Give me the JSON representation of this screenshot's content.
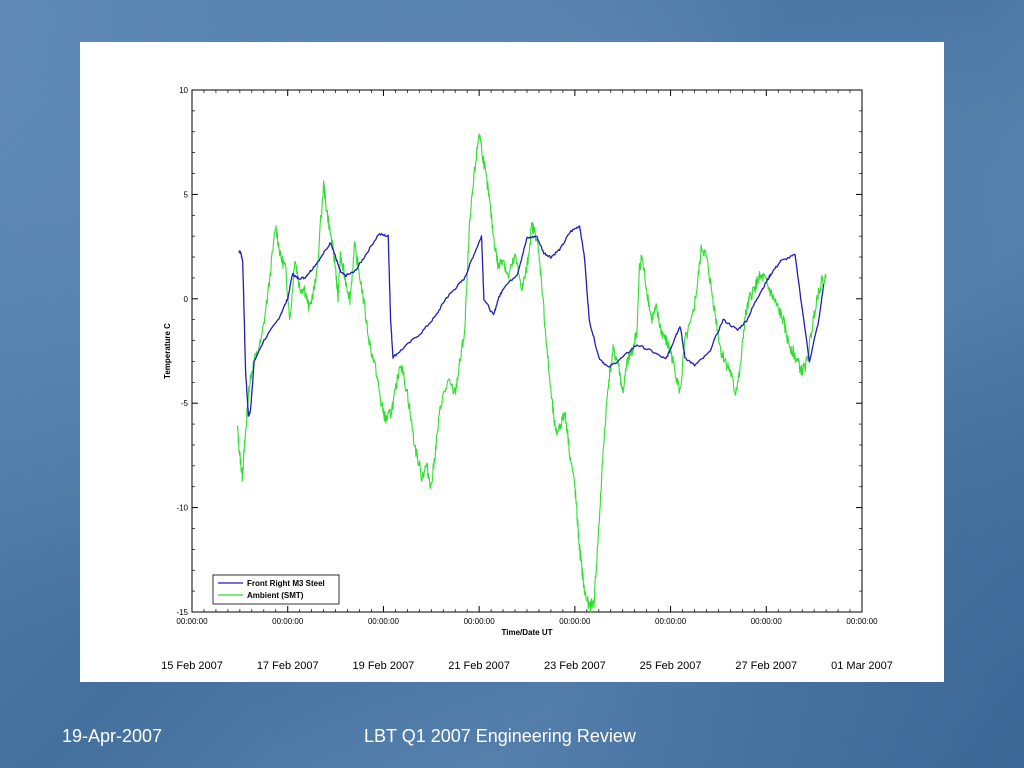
{
  "footer": {
    "date": "19-Apr-2007",
    "title": "LBT Q1 2007 Engineering Review"
  },
  "chart_data": {
    "type": "line",
    "title": "",
    "xlabel": "Time/Date UT",
    "ylabel": "Temperature C",
    "xlim": [
      "15 Feb 2007 00:00:00",
      "01 Mar 2007 00:00:00"
    ],
    "ylim": [
      -15,
      10
    ],
    "y_ticks": [
      10,
      5,
      0,
      -5,
      -10,
      -15
    ],
    "x_tick_labels": [
      "00:00:00",
      "00:00:00",
      "00:00:00",
      "00:00:00",
      "00:00:00",
      "00:00:00",
      "00:00:00",
      "00:00:00"
    ],
    "date_labels": [
      "15 Feb 2007",
      "17 Feb 2007",
      "19 Feb 2007",
      "21 Feb 2007",
      "23 Feb 2007",
      "25 Feb 2007",
      "27 Feb 2007",
      "01 Mar 2007"
    ],
    "grid": false,
    "legend_position": "bottom-left",
    "series": [
      {
        "name": "Front Right M3 Steel",
        "color": "#1f1fb4",
        "x_days": [
          0.98,
          1.02,
          1.06,
          1.12,
          1.18,
          1.22,
          1.3,
          1.5,
          1.8,
          2.0,
          2.1,
          2.2,
          2.35,
          2.5,
          2.7,
          2.9,
          3.0,
          3.1,
          3.2,
          3.4,
          3.6,
          3.9,
          4.1,
          4.15,
          4.2,
          4.4,
          4.8,
          5.1,
          5.3,
          5.5,
          5.7,
          5.85,
          6.05,
          6.1,
          6.3,
          6.4,
          6.5,
          6.8,
          7.0,
          7.2,
          7.35,
          7.5,
          7.7,
          7.9,
          8.1,
          8.2,
          8.3,
          8.5,
          8.7,
          9.0,
          9.3,
          9.6,
          9.9,
          10.0,
          10.1,
          10.2,
          10.3,
          10.5,
          10.8,
          11.1,
          11.4,
          11.6,
          11.8,
          12.0,
          12.1,
          12.3,
          12.6,
          12.9,
          13.1,
          13.2
        ],
        "values": [
          2.3,
          2.2,
          1.8,
          -3.5,
          -5.6,
          -5.4,
          -3.0,
          -2.0,
          -1.0,
          0.0,
          1.2,
          1.0,
          1.0,
          1.4,
          2.0,
          2.7,
          2.0,
          1.3,
          1.1,
          1.3,
          2.0,
          3.1,
          3.0,
          -1.0,
          -2.8,
          -2.4,
          -1.6,
          -0.8,
          0.0,
          0.5,
          1.0,
          1.9,
          3.0,
          0.0,
          -0.8,
          0.0,
          0.5,
          1.2,
          2.9,
          3.0,
          2.2,
          2.0,
          2.4,
          3.2,
          3.5,
          2.0,
          -1.0,
          -2.8,
          -3.3,
          -2.8,
          -2.2,
          -2.5,
          -2.9,
          -2.4,
          -1.8,
          -1.3,
          -2.8,
          -3.2,
          -2.6,
          -1.0,
          -1.5,
          -1.0,
          0.0,
          0.8,
          1.2,
          1.8,
          2.1,
          -3.0,
          -1.0,
          0.7
        ]
      },
      {
        "name": "Ambient (SMT)",
        "color": "#2ee02e",
        "x_days": [
          0.95,
          1.0,
          1.05,
          1.1,
          1.15,
          1.2,
          1.3,
          1.45,
          1.6,
          1.75,
          1.85,
          1.95,
          2.05,
          2.15,
          2.25,
          2.35,
          2.45,
          2.6,
          2.75,
          2.8,
          2.9,
          3.0,
          3.05,
          3.1,
          3.2,
          3.3,
          3.4,
          3.55,
          3.7,
          3.85,
          3.95,
          4.05,
          4.15,
          4.25,
          4.35,
          4.5,
          4.65,
          4.8,
          4.9,
          5.0,
          5.1,
          5.2,
          5.35,
          5.5,
          5.6,
          5.7,
          5.8,
          5.9,
          6.0,
          6.1,
          6.2,
          6.3,
          6.4,
          6.5,
          6.6,
          6.75,
          6.9,
          7.0,
          7.1,
          7.2,
          7.3,
          7.4,
          7.5,
          7.6,
          7.7,
          7.8,
          7.9,
          8.0,
          8.05,
          8.1,
          8.15,
          8.2,
          8.3,
          8.4,
          8.5,
          8.6,
          8.7,
          8.8,
          8.9,
          9.0,
          9.1,
          9.2,
          9.3,
          9.35,
          9.4,
          9.5,
          9.6,
          9.7,
          9.8,
          9.9,
          10.0,
          10.1,
          10.2,
          10.3,
          10.45,
          10.55,
          10.65,
          10.75,
          10.85,
          10.95,
          11.05,
          11.15,
          11.25,
          11.35,
          11.45,
          11.55,
          11.65,
          11.75,
          11.85,
          11.95,
          12.05,
          12.15,
          12.25,
          12.35,
          12.45,
          12.55,
          12.65,
          12.75,
          12.85,
          12.95,
          13.05,
          13.15,
          13.25
        ],
        "values": [
          -6.2,
          -7.5,
          -8.5,
          -7.0,
          -5.5,
          -4.0,
          -3.0,
          -2.0,
          0.5,
          3.5,
          2.0,
          1.5,
          -1.0,
          2.0,
          0.5,
          0.5,
          -0.5,
          1.0,
          5.5,
          4.5,
          3.0,
          1.5,
          0.0,
          2.0,
          1.0,
          0.0,
          2.5,
          0.5,
          -2.0,
          -3.5,
          -5.0,
          -5.8,
          -5.5,
          -4.5,
          -3.0,
          -4.5,
          -7.0,
          -8.5,
          -8.0,
          -9.0,
          -7.0,
          -5.0,
          -4.0,
          -4.5,
          -3.0,
          -1.5,
          3.5,
          6.0,
          8.0,
          6.5,
          5.0,
          3.0,
          1.5,
          2.0,
          1.0,
          2.0,
          0.5,
          1.5,
          3.5,
          3.0,
          1.0,
          -2.0,
          -4.5,
          -6.5,
          -6.0,
          -5.5,
          -7.5,
          -9.0,
          -10.5,
          -12.0,
          -13.0,
          -14.0,
          -14.8,
          -14.5,
          -11.0,
          -7.0,
          -4.0,
          -2.5,
          -3.0,
          -4.5,
          -3.0,
          -2.5,
          -1.5,
          1.5,
          2.0,
          0.5,
          -1.0,
          -0.5,
          -1.5,
          -2.0,
          -2.5,
          -3.5,
          -4.5,
          -2.0,
          -1.0,
          0.5,
          2.5,
          2.0,
          0.5,
          -1.0,
          -2.5,
          -3.0,
          -3.5,
          -4.5,
          -3.5,
          -1.0,
          0.0,
          0.5,
          1.0,
          1.0,
          0.5,
          0.0,
          -0.5,
          -1.0,
          -2.0,
          -2.5,
          -3.0,
          -3.5,
          -3.0,
          -1.5,
          0.0,
          0.8,
          1.0
        ]
      }
    ]
  }
}
